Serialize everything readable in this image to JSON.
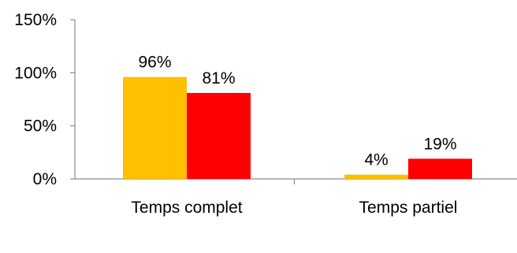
{
  "chart_data": {
    "type": "bar",
    "categories": [
      "Temps complet",
      "Temps partiel"
    ],
    "series": [
      {
        "values": [
          96,
          4
        ],
        "color": "#FFC000",
        "labels": [
          "96%",
          "4%"
        ]
      },
      {
        "values": [
          81,
          19
        ],
        "color": "#FF0000",
        "labels": [
          "81%",
          "19%"
        ]
      }
    ],
    "yticks": [
      "0%",
      "50%",
      "100%",
      "150%"
    ],
    "ylim": [
      0,
      150
    ],
    "grid": false,
    "legend": "none"
  }
}
